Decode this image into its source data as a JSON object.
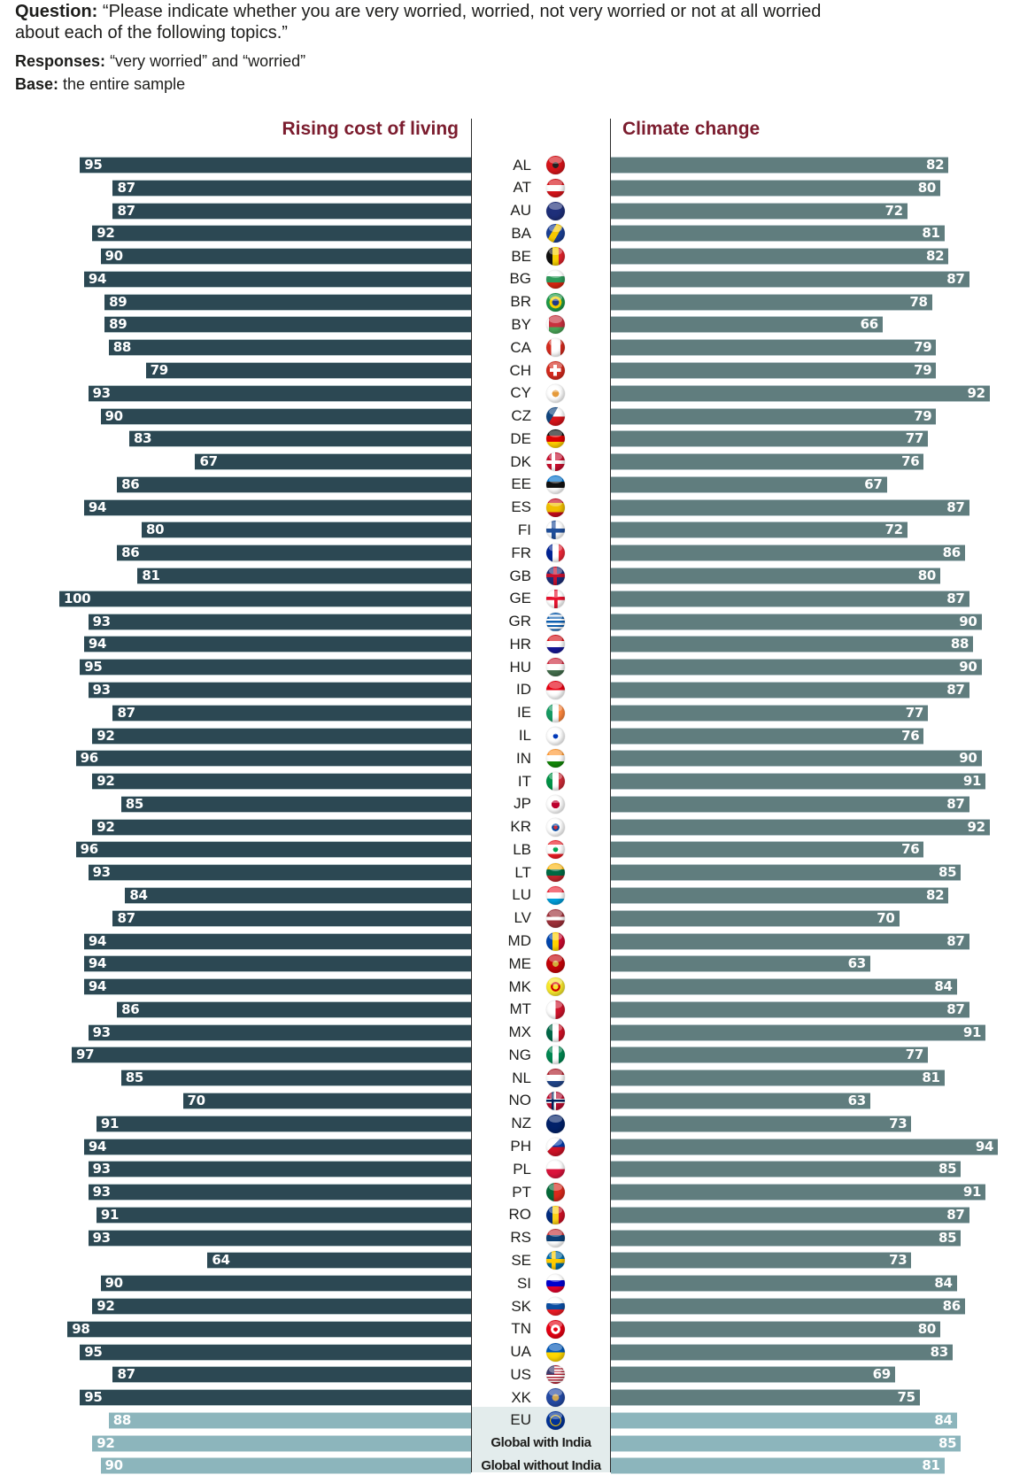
{
  "header": {
    "question_label": "Question:",
    "question_line1": "“Please indicate whether you are very worried, worried, not very worried or not at all worried",
    "question_line2": "about each of the following topics.”",
    "responses_label": "Responses:",
    "responses_text": "“very worried” and “worried”",
    "base_label": "Base:",
    "base_text": "the entire sample"
  },
  "colors": {
    "left_bar": "#2c4853",
    "right_bar": "#607d7e",
    "aggregate_bar": "#8cb5bc",
    "title": "#7b1c2e",
    "aggregate_bg": "#e3ecec"
  },
  "chart_data": {
    "type": "bar",
    "orientation": "horizontal",
    "layout": "butterfly",
    "unit": "%",
    "series": [
      {
        "name": "Rising cost of living",
        "side": "left",
        "values": [
          95,
          87,
          87,
          92,
          90,
          94,
          89,
          89,
          88,
          79,
          93,
          90,
          83,
          67,
          86,
          94,
          80,
          86,
          81,
          100,
          93,
          94,
          95,
          93,
          87,
          92,
          96,
          92,
          85,
          92,
          96,
          93,
          84,
          87,
          94,
          94,
          94,
          86,
          93,
          97,
          85,
          70,
          91,
          94,
          93,
          93,
          91,
          93,
          64,
          90,
          92,
          98,
          95,
          87,
          95,
          88,
          92,
          90
        ]
      },
      {
        "name": "Climate change",
        "side": "right",
        "values": [
          82,
          80,
          72,
          81,
          82,
          87,
          78,
          66,
          79,
          79,
          92,
          79,
          77,
          76,
          67,
          87,
          72,
          86,
          80,
          87,
          90,
          88,
          90,
          87,
          77,
          76,
          90,
          91,
          87,
          92,
          76,
          85,
          82,
          70,
          87,
          63,
          84,
          87,
          91,
          77,
          81,
          63,
          73,
          94,
          85,
          91,
          87,
          85,
          73,
          84,
          86,
          80,
          83,
          69,
          75,
          84,
          85,
          81
        ]
      }
    ],
    "categories": [
      "AL",
      "AT",
      "AU",
      "BA",
      "BE",
      "BG",
      "BR",
      "BY",
      "CA",
      "CH",
      "CY",
      "CZ",
      "DE",
      "DK",
      "EE",
      "ES",
      "FI",
      "FR",
      "GB",
      "GE",
      "GR",
      "HR",
      "HU",
      "ID",
      "IE",
      "IL",
      "IN",
      "IT",
      "JP",
      "KR",
      "LB",
      "LT",
      "LU",
      "LV",
      "MD",
      "ME",
      "MK",
      "MT",
      "MX",
      "NG",
      "NL",
      "NO",
      "NZ",
      "PH",
      "PL",
      "PT",
      "RO",
      "RS",
      "SE",
      "SI",
      "SK",
      "TN",
      "UA",
      "US",
      "XK",
      "EU",
      "Global with India",
      "Global without India"
    ],
    "aggregate_categories": [
      "EU",
      "Global with India",
      "Global without India"
    ],
    "flags": [
      "flag-albania-icon",
      "flag-austria-icon",
      "flag-australia-icon",
      "flag-bosnia-icon",
      "flag-belgium-icon",
      "flag-bulgaria-icon",
      "flag-brazil-icon",
      "flag-belarus-icon",
      "flag-canada-icon",
      "flag-switzerland-icon",
      "flag-cyprus-icon",
      "flag-czechia-icon",
      "flag-germany-icon",
      "flag-denmark-icon",
      "flag-estonia-icon",
      "flag-spain-icon",
      "flag-finland-icon",
      "flag-france-icon",
      "flag-uk-icon",
      "flag-georgia-icon",
      "flag-greece-icon",
      "flag-croatia-icon",
      "flag-hungary-icon",
      "flag-indonesia-icon",
      "flag-ireland-icon",
      "flag-israel-icon",
      "flag-india-icon",
      "flag-italy-icon",
      "flag-japan-icon",
      "flag-korea-icon",
      "flag-lebanon-icon",
      "flag-lithuania-icon",
      "flag-luxembourg-icon",
      "flag-latvia-icon",
      "flag-moldova-icon",
      "flag-montenegro-icon",
      "flag-north-macedonia-icon",
      "flag-malta-icon",
      "flag-mexico-icon",
      "flag-nigeria-icon",
      "flag-netherlands-icon",
      "flag-norway-icon",
      "flag-new-zealand-icon",
      "flag-philippines-icon",
      "flag-poland-icon",
      "flag-portugal-icon",
      "flag-romania-icon",
      "flag-serbia-icon",
      "flag-sweden-icon",
      "flag-slovenia-icon",
      "flag-slovakia-icon",
      "flag-tunisia-icon",
      "flag-ukraine-icon",
      "flag-usa-icon",
      "flag-kosovo-icon",
      "flag-eu-icon",
      null,
      null
    ],
    "title_left": "Rising cost of living",
    "title_right": "Climate change",
    "xlim": [
      0,
      100
    ],
    "grid": false,
    "legend": "none"
  }
}
